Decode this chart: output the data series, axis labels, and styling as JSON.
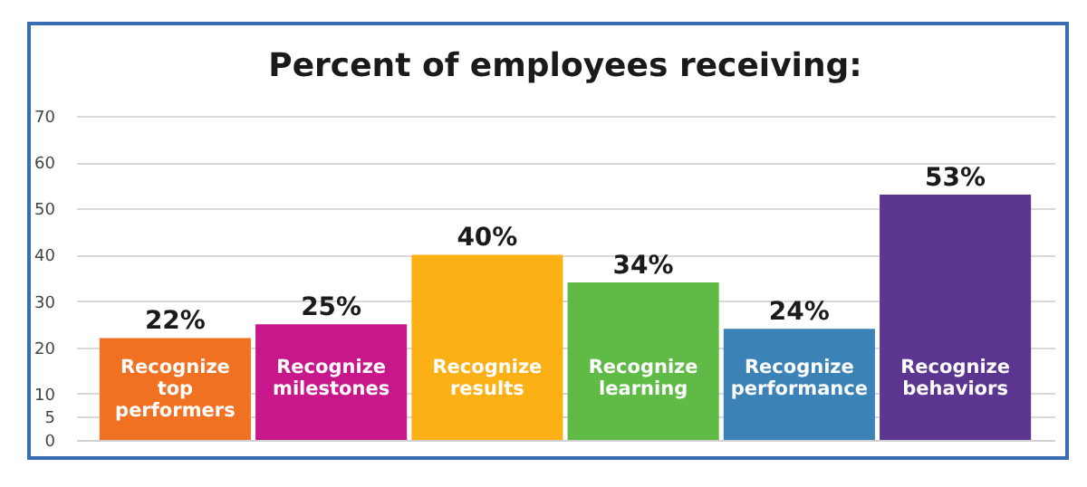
{
  "chart_data": {
    "type": "bar",
    "title": "Percent of employees receiving:",
    "categories": [
      "Recognize top performers",
      "Recognize milestones",
      "Recognize results",
      "Recognize learning",
      "Recognize performance",
      "Recognize behaviors"
    ],
    "values": [
      22,
      25,
      40,
      34,
      24,
      53
    ],
    "colors": [
      "#f07122",
      "#c7178a",
      "#fbb116",
      "#5fbb46",
      "#3b83b7",
      "#5b358f"
    ],
    "value_labels": [
      "22%",
      "25%",
      "40%",
      "34%",
      "24%",
      "53%"
    ],
    "ylim": [
      0,
      70
    ],
    "yticks": [
      0,
      5,
      10,
      20,
      30,
      40,
      50,
      60,
      70
    ],
    "grid": "y"
  }
}
